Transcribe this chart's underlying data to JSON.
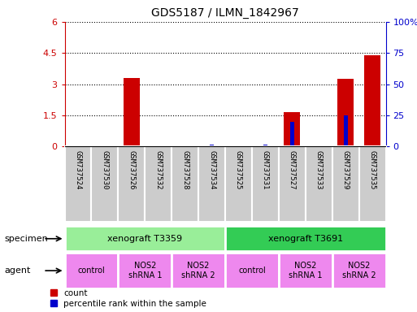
{
  "title": "GDS5187 / ILMN_1842967",
  "samples": [
    "GSM737524",
    "GSM737530",
    "GSM737526",
    "GSM737532",
    "GSM737528",
    "GSM737534",
    "GSM737525",
    "GSM737531",
    "GSM737527",
    "GSM737533",
    "GSM737529",
    "GSM737535"
  ],
  "counts": [
    0.0,
    0.0,
    3.3,
    0.0,
    0.0,
    0.0,
    0.0,
    0.0,
    1.65,
    0.0,
    3.25,
    4.4
  ],
  "percentiles": [
    0.0,
    0.0,
    0.0,
    0.0,
    0.0,
    1.5,
    0.0,
    1.5,
    20.0,
    0.0,
    25.0,
    0.0
  ],
  "ylim_left": [
    0,
    6
  ],
  "ylim_right": [
    0,
    100
  ],
  "yticks_left": [
    0,
    1.5,
    3,
    4.5,
    6
  ],
  "yticks_right": [
    0,
    25,
    50,
    75,
    100
  ],
  "ytick_labels_left": [
    "0",
    "1.5",
    "3",
    "4.5",
    "6"
  ],
  "ytick_labels_right": [
    "0",
    "25",
    "50",
    "75",
    "100%"
  ],
  "bar_color": "#cc0000",
  "percentile_color": "#0000cc",
  "specimen_row": [
    {
      "label": "xenograft T3359",
      "start": 0,
      "end": 6,
      "color": "#99ee99"
    },
    {
      "label": "xenograft T3691",
      "start": 6,
      "end": 12,
      "color": "#33cc55"
    }
  ],
  "agent_row": [
    {
      "label": "control",
      "start": 0,
      "end": 2,
      "color": "#ee88ee"
    },
    {
      "label": "NOS2\nshRNA 1",
      "start": 2,
      "end": 4,
      "color": "#ee88ee"
    },
    {
      "label": "NOS2\nshRNA 2",
      "start": 4,
      "end": 6,
      "color": "#ee88ee"
    },
    {
      "label": "control",
      "start": 6,
      "end": 8,
      "color": "#ee88ee"
    },
    {
      "label": "NOS2\nshRNA 1",
      "start": 8,
      "end": 10,
      "color": "#ee88ee"
    },
    {
      "label": "NOS2\nshRNA 2",
      "start": 10,
      "end": 12,
      "color": "#ee88ee"
    }
  ],
  "legend_count_label": "count",
  "legend_percentile_label": "percentile rank within the sample",
  "label_specimen": "specimen",
  "label_agent": "agent",
  "background_color": "#ffffff",
  "sample_bg_color": "#cccccc",
  "sample_border_color": "#ffffff"
}
